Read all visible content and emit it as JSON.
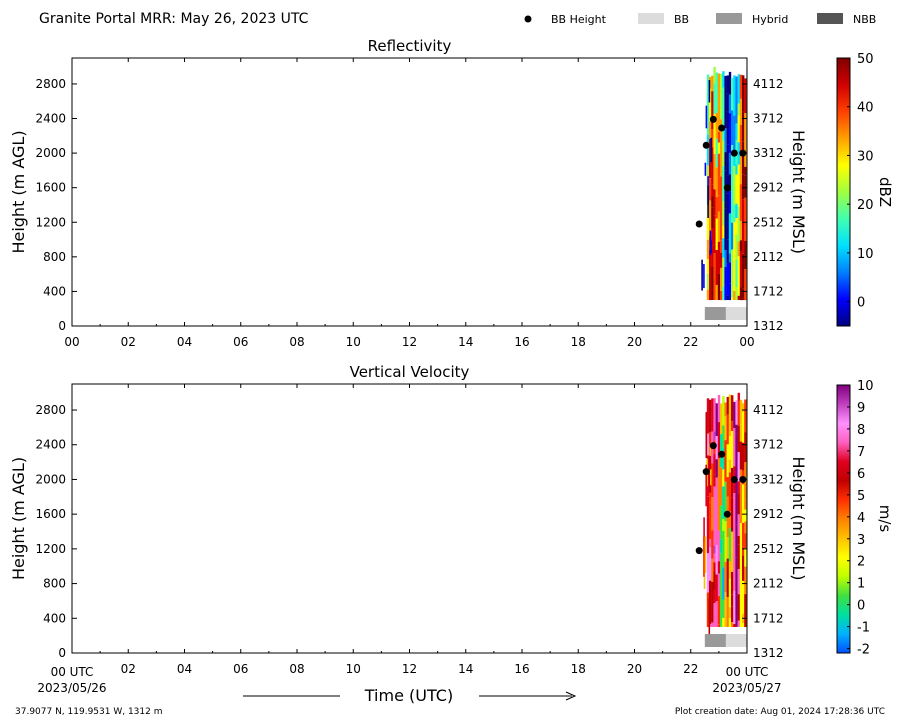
{
  "header": {
    "title": "Granite Portal MRR:  May 26, 2023 UTC",
    "legend": [
      {
        "label": "BB Height",
        "kind": "dot",
        "color": "#000000"
      },
      {
        "label": "BB",
        "kind": "box",
        "color": "#dcdcdc"
      },
      {
        "label": "Hybrid",
        "kind": "box",
        "color": "#999999"
      },
      {
        "label": "NBB",
        "kind": "box",
        "color": "#555555"
      }
    ]
  },
  "footer": {
    "location": "37.9077 N, 119.9531 W, 1312 m",
    "created": "Plot creation date: Aug 01, 2024 17:28:36 UTC",
    "xlabel": "Time (UTC)",
    "start_label": "00 UTC",
    "start_date": "2023/05/26",
    "end_label": "00 UTC",
    "end_date": "2023/05/27"
  },
  "chart_data": [
    {
      "type": "heatmap",
      "title": "Reflectivity",
      "ylabel": "Height (m AGL)",
      "y2label": "Height (m MSL)",
      "colorbar_label": "dBZ",
      "x_ticks": [
        "00",
        "02",
        "04",
        "06",
        "08",
        "10",
        "12",
        "14",
        "16",
        "18",
        "20",
        "22",
        "00"
      ],
      "xlim": [
        0,
        24
      ],
      "ylim": [
        0,
        3100
      ],
      "y_ticks": [
        0,
        400,
        800,
        1200,
        1600,
        2000,
        2400,
        2800
      ],
      "y2_ticks": [
        "1312",
        "1712",
        "2112",
        "2512",
        "2912",
        "3312",
        "3712",
        "4112"
      ],
      "colorbar_range": [
        -5,
        50
      ],
      "colorbar_ticks": [
        0,
        10,
        20,
        30,
        40,
        50
      ],
      "colormap": [
        "#000080",
        "#0000ff",
        "#0080ff",
        "#00e0ff",
        "#40ffb0",
        "#a0ff40",
        "#ffff00",
        "#ffa000",
        "#ff4000",
        "#d00000",
        "#800000"
      ],
      "data_time_range": [
        22.5,
        24
      ],
      "data_height_range": [
        300,
        3000
      ],
      "bb_height": [
        {
          "x": 22.3,
          "y": 1180
        },
        {
          "x": 22.55,
          "y": 2090
        },
        {
          "x": 22.8,
          "y": 2390
        },
        {
          "x": 23.1,
          "y": 2290
        },
        {
          "x": 23.3,
          "y": 1600
        },
        {
          "x": 23.55,
          "y": 2000
        },
        {
          "x": 23.85,
          "y": 2000
        }
      ],
      "bb_type": [
        {
          "start": 22.5,
          "end": 23.25,
          "type": "Hybrid"
        },
        {
          "start": 23.25,
          "end": 24.0,
          "type": "BB"
        }
      ]
    },
    {
      "type": "heatmap",
      "title": "Vertical Velocity",
      "ylabel": "Height (m AGL)",
      "y2label": "Height (m MSL)",
      "colorbar_label": "m/s",
      "x_ticks": [
        "00",
        "02",
        "04",
        "06",
        "08",
        "10",
        "12",
        "14",
        "16",
        "18",
        "20",
        "22",
        "00"
      ],
      "xlim": [
        0,
        24
      ],
      "ylim": [
        0,
        3100
      ],
      "y_ticks": [
        0,
        400,
        800,
        1200,
        1600,
        2000,
        2400,
        2800
      ],
      "y2_ticks": [
        "1312",
        "1712",
        "2112",
        "2512",
        "2912",
        "3312",
        "3712",
        "4112"
      ],
      "colorbar_range": [
        -2.2,
        10
      ],
      "colorbar_ticks": [
        -2,
        -1,
        0,
        1,
        2,
        3,
        4,
        5,
        6,
        7,
        8,
        9,
        10
      ],
      "colormap": [
        "#0050ff",
        "#00b0ff",
        "#00e0a0",
        "#40e040",
        "#c0ff00",
        "#ffff00",
        "#ffc000",
        "#ff8000",
        "#ff3000",
        "#c00000",
        "#e00020",
        "#ff60c0",
        "#ff90ff",
        "#c040c0",
        "#800080"
      ],
      "data_time_range": [
        22.5,
        24
      ],
      "data_height_range": [
        300,
        3000
      ],
      "bb_height": [
        {
          "x": 22.3,
          "y": 1180
        },
        {
          "x": 22.55,
          "y": 2090
        },
        {
          "x": 22.8,
          "y": 2390
        },
        {
          "x": 23.1,
          "y": 2290
        },
        {
          "x": 23.3,
          "y": 1600
        },
        {
          "x": 23.55,
          "y": 2000
        },
        {
          "x": 23.85,
          "y": 2000
        }
      ],
      "bb_type": [
        {
          "start": 22.5,
          "end": 23.25,
          "type": "Hybrid"
        },
        {
          "start": 23.25,
          "end": 24.0,
          "type": "BB"
        }
      ]
    }
  ]
}
